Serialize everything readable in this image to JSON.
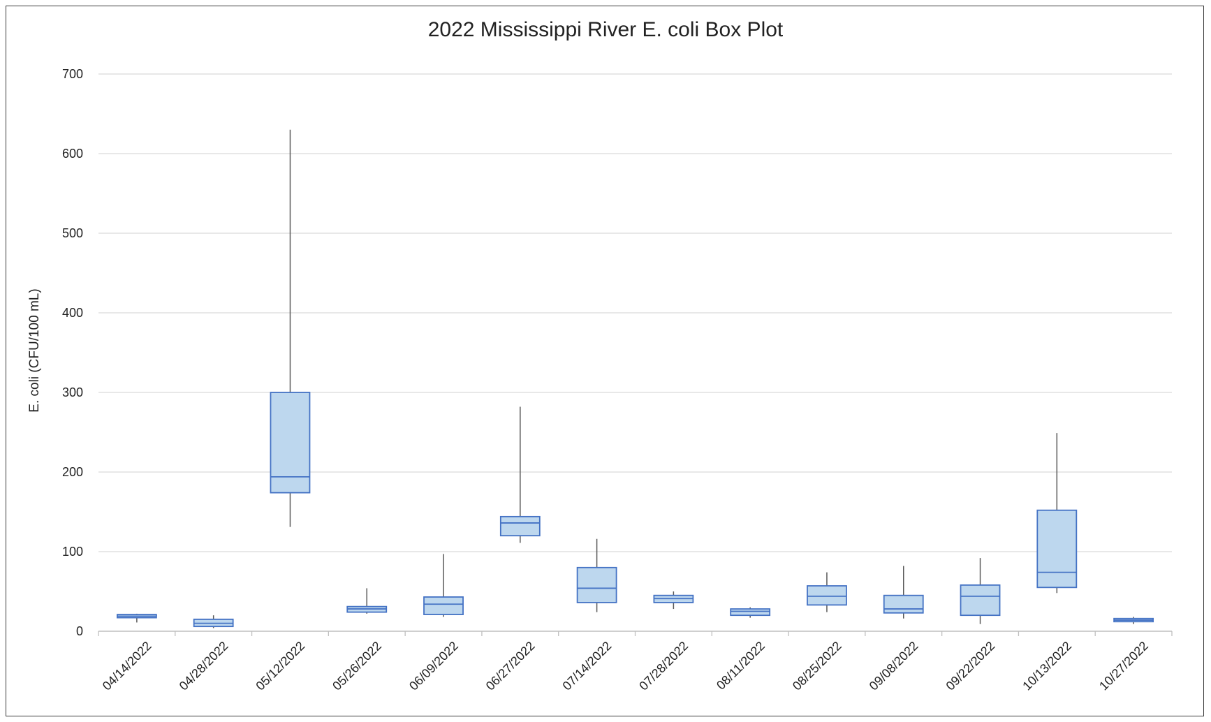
{
  "chart_data": {
    "type": "box",
    "title": "2022 Mississippi River E. coli Box Plot",
    "xlabel": "",
    "ylabel": "E. coli (CFU/100 mL)",
    "ylim": [
      0,
      700
    ],
    "yticks": [
      0,
      100,
      200,
      300,
      400,
      500,
      600,
      700
    ],
    "grid": true,
    "colors": {
      "box_fill": "#bdd7ee",
      "box_stroke": "#4472c4",
      "whisker": "#595959",
      "grid": "#d9d9d9"
    },
    "categories": [
      "04/14/2022",
      "04/28/2022",
      "05/12/2022",
      "05/26/2022",
      "06/09/2022",
      "06/27/2022",
      "07/14/2022",
      "07/28/2022",
      "08/11/2022",
      "08/25/2022",
      "09/08/2022",
      "09/22/2022",
      "10/13/2022",
      "10/27/2022"
    ],
    "boxes": [
      {
        "min": 11,
        "q1": 17,
        "median": 19,
        "q3": 21,
        "max": 22
      },
      {
        "min": 4,
        "q1": 6,
        "median": 10,
        "q3": 15,
        "max": 20
      },
      {
        "min": 131,
        "q1": 174,
        "median": 194,
        "q3": 300,
        "max": 630
      },
      {
        "min": 22,
        "q1": 24,
        "median": 28,
        "q3": 31,
        "max": 54
      },
      {
        "min": 18,
        "q1": 21,
        "median": 34,
        "q3": 43,
        "max": 97
      },
      {
        "min": 111,
        "q1": 120,
        "median": 136,
        "q3": 144,
        "max": 282
      },
      {
        "min": 24,
        "q1": 36,
        "median": 54,
        "q3": 80,
        "max": 116
      },
      {
        "min": 28,
        "q1": 36,
        "median": 41,
        "q3": 45,
        "max": 50
      },
      {
        "min": 17,
        "q1": 20,
        "median": 25,
        "q3": 28,
        "max": 30
      },
      {
        "min": 24,
        "q1": 33,
        "median": 44,
        "q3": 57,
        "max": 74
      },
      {
        "min": 16,
        "q1": 23,
        "median": 28,
        "q3": 45,
        "max": 82
      },
      {
        "min": 9,
        "q1": 20,
        "median": 44,
        "q3": 58,
        "max": 92
      },
      {
        "min": 48,
        "q1": 55,
        "median": 74,
        "q3": 152,
        "max": 249
      },
      {
        "min": 9,
        "q1": 12,
        "median": 14,
        "q3": 16,
        "max": 18
      }
    ]
  }
}
